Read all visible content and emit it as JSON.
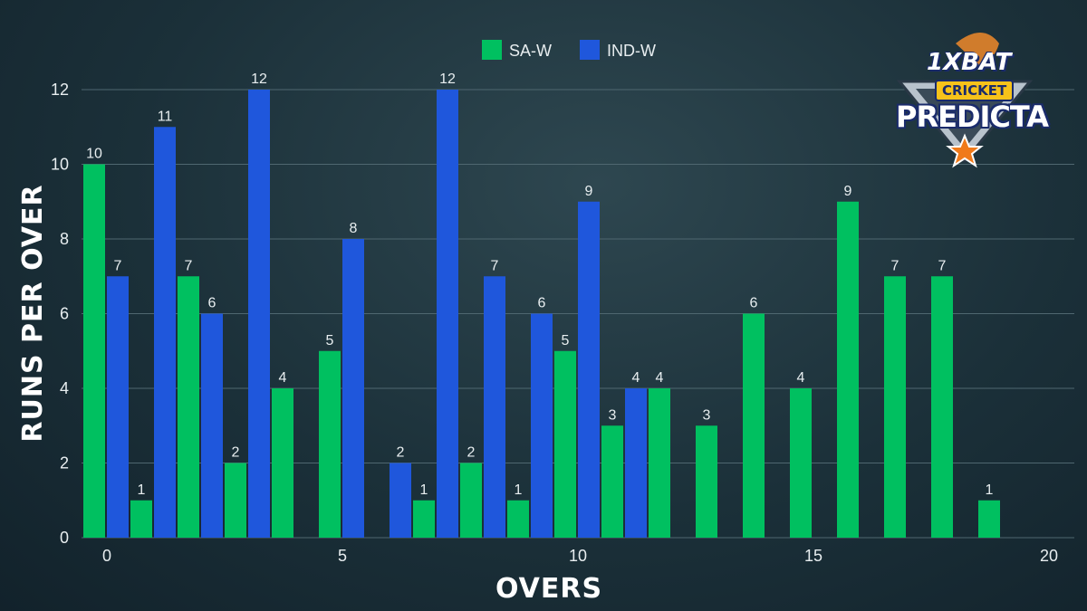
{
  "colors": {
    "sa_w": "#00c060",
    "ind_w": "#1f57dc"
  },
  "logo": {
    "brand": "1XBAT",
    "line1": "CRICKET",
    "line2": "PREDICTA"
  },
  "chart_data": {
    "type": "bar",
    "xlabel": "OVERS",
    "ylabel": "RUNS PER OVER",
    "xlim": [
      -0.5,
      20.5
    ],
    "ylim": [
      0,
      12.5
    ],
    "xticks": [
      0,
      5,
      10,
      15,
      20
    ],
    "yticks": [
      0,
      2,
      4,
      6,
      8,
      10,
      12
    ],
    "grid": true,
    "legend_position": "top-center",
    "series": [
      {
        "name": "SA-W",
        "color": "#00c060",
        "x": [
          0,
          1,
          2,
          3,
          4,
          5,
          7,
          8,
          9,
          10,
          11,
          12,
          13,
          14,
          15,
          16,
          17,
          18,
          19
        ],
        "values": [
          10,
          1,
          7,
          2,
          4,
          5,
          1,
          2,
          1,
          5,
          3,
          4,
          3,
          6,
          4,
          9,
          7,
          7,
          1
        ]
      },
      {
        "name": "IND-W",
        "color": "#1f57dc",
        "x": [
          0,
          1,
          2,
          3,
          5,
          6,
          7,
          8,
          9,
          10,
          11
        ],
        "values": [
          7,
          11,
          6,
          12,
          8,
          2,
          12,
          7,
          6,
          9,
          4
        ]
      }
    ]
  }
}
